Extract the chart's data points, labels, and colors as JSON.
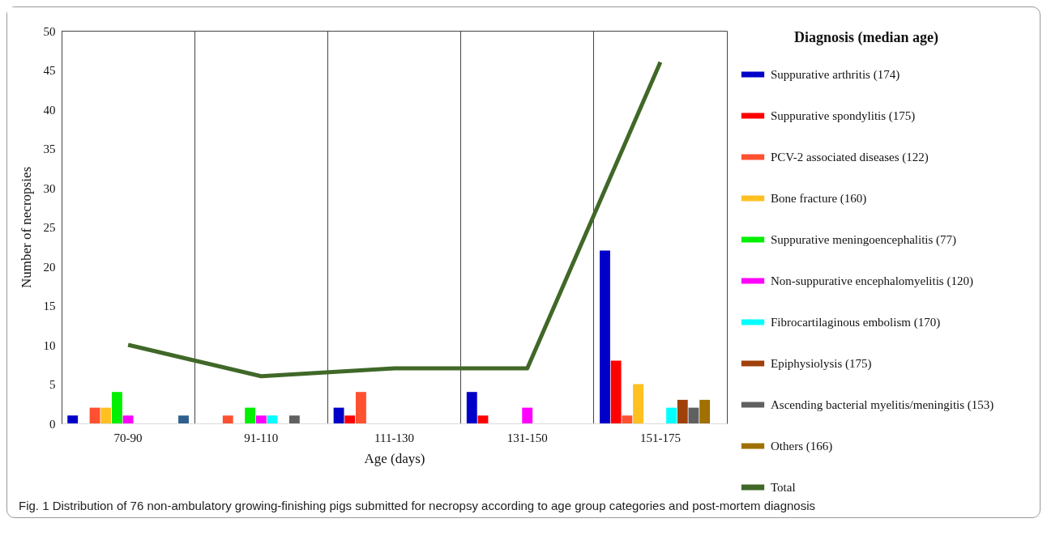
{
  "chart_data": {
    "type": "bar",
    "xlabel": "Age (days)",
    "ylabel": "Number of necropsies",
    "legend_title": "Diagnosis (median age)",
    "categories": [
      "70-90",
      "91-110",
      "111-130",
      "131-150",
      "151-175"
    ],
    "ylim": [
      0,
      50
    ],
    "yticks": [
      0,
      5,
      10,
      15,
      20,
      25,
      30,
      35,
      40,
      45,
      50
    ],
    "grid": "x",
    "legend": "right",
    "series": [
      {
        "name": "Suppurative arthritis (174)",
        "color": "#0000c8",
        "values": [
          1,
          null,
          2,
          4,
          22
        ]
      },
      {
        "name": "Suppurative spondylitis (175)",
        "color": "#ff0000",
        "values": [
          null,
          null,
          1,
          1,
          8
        ]
      },
      {
        "name": "PCV-2 associated diseases (122)",
        "color": "#ff5030",
        "values": [
          2,
          1,
          4,
          null,
          1
        ]
      },
      {
        "name": "Bone fracture (160)",
        "color": "#ffc020",
        "values": [
          2,
          null,
          null,
          null,
          5
        ]
      },
      {
        "name": "Suppurative meningoencephalitis (77)",
        "color": "#00f000",
        "values": [
          4,
          2,
          null,
          null,
          null
        ]
      },
      {
        "name": "Non-suppurative encephalomyelitis (120)",
        "color": "#ff00ff",
        "values": [
          1,
          1,
          null,
          2,
          null
        ]
      },
      {
        "name": "Fibrocartilaginous embolism (170)",
        "color": "#00ffff",
        "values": [
          null,
          1,
          null,
          null,
          2
        ]
      },
      {
        "name": "Epiphysiolysis (175)",
        "color": "#a0400a",
        "values": [
          null,
          null,
          null,
          null,
          3
        ]
      },
      {
        "name": "Ascending bacterial myelitis/meningitis (153)",
        "color": "#606060",
        "values": [
          null,
          1,
          null,
          null,
          2
        ]
      },
      {
        "name": "Others (166)",
        "color": "#a07000",
        "values": [
          null,
          null,
          null,
          null,
          3
        ]
      },
      {
        "color": "#2e5f8e",
        "values": [
          1,
          null,
          null,
          null,
          null
        ]
      },
      {
        "name": "Total",
        "type": "line",
        "color": "#406828",
        "values": [
          10,
          6,
          7,
          7,
          46
        ]
      }
    ],
    "annotations": [
      "Fig. 1  Distribution of 76 non-ambulatory growing-finishing pigs submitted for necropsy according to age group categories and post-mortem diagnosis"
    ]
  }
}
